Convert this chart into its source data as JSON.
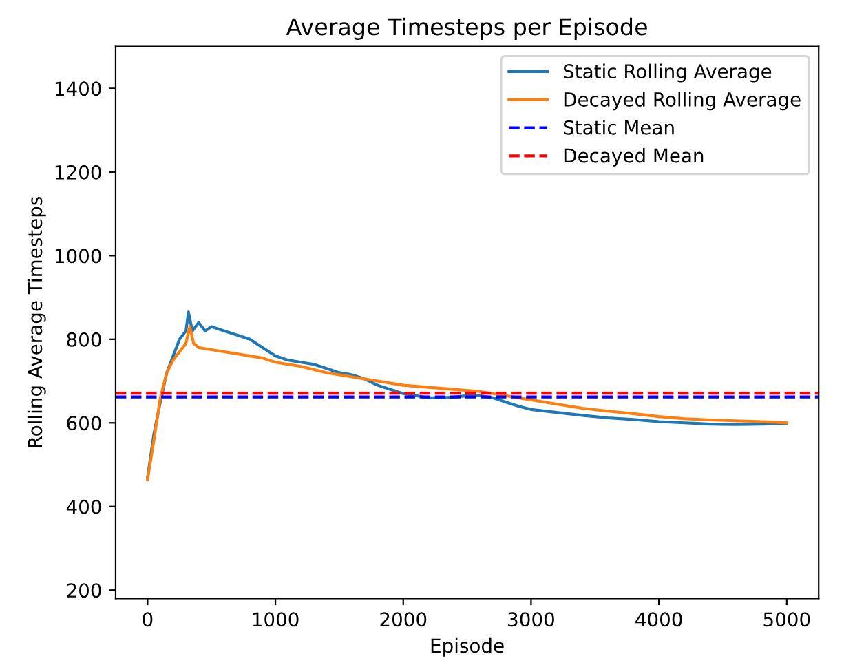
{
  "chart_data": {
    "type": "line",
    "title": "Average Timesteps per Episode",
    "xlabel": "Episode",
    "ylabel": "Rolling Average Timesteps",
    "xlim": [
      -250,
      5250
    ],
    "xticks": [
      0,
      1000,
      2000,
      3000,
      4000,
      5000
    ],
    "ylim": [
      180,
      1500
    ],
    "yticks": [
      200,
      400,
      600,
      800,
      1000,
      1200,
      1400
    ],
    "series": [
      {
        "name": "Static Rolling Average",
        "color": "#1f77b4",
        "x": [
          0,
          50,
          100,
          150,
          200,
          250,
          300,
          320,
          350,
          400,
          450,
          500,
          600,
          700,
          800,
          900,
          1000,
          1100,
          1200,
          1300,
          1400,
          1500,
          1600,
          1700,
          1800,
          1900,
          2000,
          2100,
          2200,
          2300,
          2400,
          2500,
          2600,
          2700,
          2800,
          2900,
          3000,
          3200,
          3400,
          3600,
          3800,
          4000,
          4200,
          4400,
          4600,
          4800,
          5000
        ],
        "values": [
          470,
          575,
          650,
          720,
          760,
          800,
          820,
          865,
          820,
          840,
          820,
          830,
          820,
          810,
          800,
          780,
          760,
          750,
          745,
          740,
          730,
          720,
          715,
          705,
          690,
          680,
          670,
          665,
          660,
          660,
          662,
          665,
          665,
          660,
          650,
          640,
          632,
          625,
          618,
          612,
          608,
          603,
          600,
          597,
          596,
          597,
          598
        ]
      },
      {
        "name": "Decayed Rolling Average",
        "color": "#ff7f0e",
        "x": [
          0,
          50,
          100,
          150,
          200,
          250,
          300,
          330,
          360,
          400,
          500,
          600,
          700,
          800,
          900,
          1000,
          1200,
          1400,
          1600,
          1800,
          2000,
          2200,
          2400,
          2600,
          2800,
          3000,
          3200,
          3400,
          3600,
          3800,
          4000,
          4200,
          4400,
          4600,
          4800,
          5000
        ],
        "values": [
          465,
          560,
          660,
          720,
          750,
          770,
          790,
          830,
          790,
          780,
          775,
          770,
          765,
          760,
          755,
          745,
          735,
          720,
          710,
          700,
          690,
          685,
          680,
          675,
          665,
          655,
          645,
          635,
          628,
          622,
          615,
          610,
          607,
          605,
          603,
          600
        ]
      }
    ],
    "ref_lines": [
      {
        "axis": "y",
        "value": 662,
        "label": "Static Mean",
        "color": "#0000ff",
        "line_style": "dashed"
      },
      {
        "axis": "y",
        "value": 671,
        "label": "Decayed Mean",
        "color": "#ff0000",
        "line_style": "dashed"
      }
    ],
    "legend": "top right",
    "grid": false
  }
}
